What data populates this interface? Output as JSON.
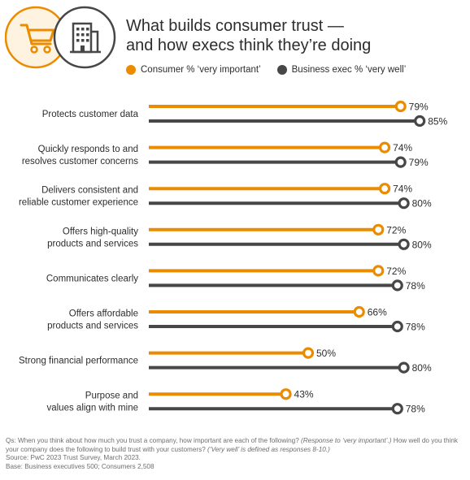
{
  "title": {
    "line1": "What builds consumer trust —",
    "line2": "and how execs think they’re doing"
  },
  "icons": {
    "left": "shopping-cart-icon",
    "right": "office-building-icon"
  },
  "colors": {
    "consumer": "#eb8c00",
    "business": "#474747",
    "accent_circle_fill": "#fef2e0"
  },
  "chart_data": {
    "type": "bar",
    "categories": [
      [
        "Protects customer data"
      ],
      [
        "Quickly responds to and",
        "resolves customer concerns"
      ],
      [
        "Delivers consistent and",
        "reliable customer experience"
      ],
      [
        "Offers high-quality",
        "products and services"
      ],
      [
        "Communicates clearly"
      ],
      [
        "Offers affordable",
        "products and services"
      ],
      [
        "Strong financial performance"
      ],
      [
        "Purpose and",
        "values align with mine"
      ]
    ],
    "series": [
      {
        "name": "Consumer % ‘very important’",
        "values": [
          79,
          74,
          74,
          72,
          72,
          66,
          50,
          43
        ],
        "labels": [
          "79%",
          "74%",
          "74%",
          "72%",
          "72%",
          "66%",
          "50%",
          "43%"
        ]
      },
      {
        "name": "Business exec % ‘very well’",
        "values": [
          85,
          79,
          80,
          80,
          78,
          78,
          80,
          78
        ],
        "labels": [
          "85%",
          "79%",
          "80%",
          "80%",
          "78%",
          "78%",
          "80%",
          "78%"
        ]
      }
    ],
    "xlim": [
      0,
      100
    ],
    "legend": "top"
  },
  "footnote": {
    "q_part1": "Qs: When you think about how much you trust a company, how important are each of the following? ",
    "q_part2": "(Response to ‘very important’.)",
    "q_part3": " How well do you think your company does the following to build trust with your customers? ",
    "q_part4": "(‘Very well’ is defined as responses 8-10.)",
    "source": "Source: PwC 2023 Trust Survey, March 2023.",
    "base": "Base: Business executives 500; Consumers 2,508"
  }
}
